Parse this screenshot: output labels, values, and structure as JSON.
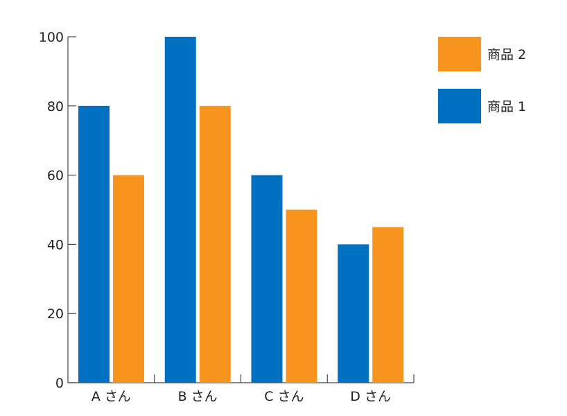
{
  "chart_data": {
    "type": "bar",
    "title": "",
    "xlabel": "",
    "ylabel": "",
    "categories": [
      "A さん",
      "B さん",
      "C さん",
      "D さん"
    ],
    "series": [
      {
        "name": "商品 1",
        "values": [
          80,
          100,
          60,
          40
        ],
        "color": "#0070c0"
      },
      {
        "name": "商品 2",
        "values": [
          60,
          80,
          50,
          45
        ],
        "color": "#f7941d"
      }
    ],
    "ylim": [
      0,
      100
    ],
    "yticks": [
      "0",
      "20",
      "40",
      "60",
      "80",
      "100"
    ],
    "grid": false,
    "legend_position": "top-right",
    "legend_order": [
      "商品 2",
      "商品 1"
    ]
  }
}
